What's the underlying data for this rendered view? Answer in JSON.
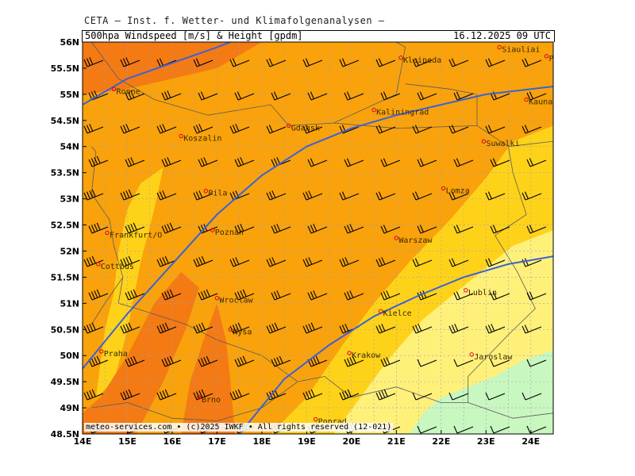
{
  "supertitle": "CETA — Inst. f. Wetter- und Klimafolgenanalysen —",
  "header": {
    "left": "500hpa Windspeed [m/s] & Height [gpdm]",
    "right": "16.12.2025 09 UTC"
  },
  "credit": "meteo-services.com • (c)2025 IWKF • All rights reserved (12-021)",
  "axes": {
    "lon_min": 14,
    "lon_max": 24.5,
    "lat_min": 48.5,
    "lat_max": 56,
    "lon_ticks": [
      "14E",
      "15E",
      "16E",
      "17E",
      "18E",
      "19E",
      "20E",
      "21E",
      "22E",
      "23E",
      "24E"
    ],
    "lat_ticks": [
      "48.5N",
      "49N",
      "49.5N",
      "50N",
      "50.5N",
      "51N",
      "51.5N",
      "52N",
      "52.5N",
      "53N",
      "53.5N",
      "54N",
      "54.5N",
      "55N",
      "55.5N",
      "56N"
    ]
  },
  "colors": {
    "dark_orange": "#f47a14",
    "orange": "#f9a20b",
    "yellow": "#ffd21a",
    "light_yellow": "#fff07a",
    "light_green": "#c8f7c0",
    "contour": "#3a62d6",
    "border": "#5a5a5a",
    "city": "#e0001a"
  },
  "cities": [
    {
      "name": "Ronne",
      "lon": 14.7,
      "lat": 55.1
    },
    {
      "name": "Koszalin",
      "lon": 16.2,
      "lat": 54.2
    },
    {
      "name": "Gdansk",
      "lon": 18.6,
      "lat": 54.4
    },
    {
      "name": "Kaliningrad",
      "lon": 20.5,
      "lat": 54.7
    },
    {
      "name": "Klaipeda",
      "lon": 21.1,
      "lat": 55.7
    },
    {
      "name": "Siauliai",
      "lon": 23.3,
      "lat": 55.9
    },
    {
      "name": "Panevezys",
      "lon": 24.35,
      "lat": 55.73
    },
    {
      "name": "Kaunas",
      "lon": 23.9,
      "lat": 54.9
    },
    {
      "name": "Suwalki",
      "lon": 22.95,
      "lat": 54.1
    },
    {
      "name": "Pila",
      "lon": 16.75,
      "lat": 53.15
    },
    {
      "name": "Lomza",
      "lon": 22.05,
      "lat": 53.2
    },
    {
      "name": "Poznan",
      "lon": 16.9,
      "lat": 52.4
    },
    {
      "name": "Warszaw",
      "lon": 21.0,
      "lat": 52.25
    },
    {
      "name": "Frankfurt/O",
      "lon": 14.55,
      "lat": 52.35
    },
    {
      "name": "Cottbus",
      "lon": 14.35,
      "lat": 51.75
    },
    {
      "name": "Lublin",
      "lon": 22.55,
      "lat": 51.25
    },
    {
      "name": "Wroclaw",
      "lon": 17.0,
      "lat": 51.1
    },
    {
      "name": "Kielce",
      "lon": 20.65,
      "lat": 50.85
    },
    {
      "name": "Nysa",
      "lon": 17.3,
      "lat": 50.5
    },
    {
      "name": "Praha",
      "lon": 14.42,
      "lat": 50.08
    },
    {
      "name": "Krakow",
      "lon": 19.95,
      "lat": 50.05
    },
    {
      "name": "Jaroslaw",
      "lon": 22.68,
      "lat": 50.02
    },
    {
      "name": "Brno",
      "lon": 16.6,
      "lat": 49.2
    },
    {
      "name": "Poprad",
      "lon": 19.2,
      "lat": 48.78
    }
  ],
  "contours": [
    [
      [
        14,
        54.8
      ],
      [
        15,
        55.3
      ],
      [
        16,
        55.6
      ],
      [
        17,
        55.9
      ],
      [
        17.3,
        56
      ]
    ],
    [
      [
        14,
        49.75
      ],
      [
        15,
        50.8
      ],
      [
        16,
        51.75
      ],
      [
        17,
        52.7
      ],
      [
        18,
        53.45
      ],
      [
        19,
        54.0
      ],
      [
        20,
        54.35
      ],
      [
        21,
        54.6
      ],
      [
        22,
        54.8
      ],
      [
        23,
        55.0
      ],
      [
        24.5,
        55.15
      ]
    ],
    [
      [
        17.5,
        48.5
      ],
      [
        18.5,
        49.55
      ],
      [
        19.5,
        50.2
      ],
      [
        20.5,
        50.75
      ],
      [
        21.5,
        51.15
      ],
      [
        22.5,
        51.5
      ],
      [
        23.5,
        51.75
      ],
      [
        24.5,
        51.9
      ]
    ]
  ],
  "regions": [
    {
      "color": "dark_orange",
      "points": [
        [
          14,
          56
        ],
        [
          18,
          56
        ],
        [
          17,
          55.5
        ],
        [
          15,
          55.1
        ],
        [
          14,
          55.0
        ]
      ]
    },
    {
      "color": "yellow",
      "points": [
        [
          18.2,
          48.5
        ],
        [
          19.0,
          49.2
        ],
        [
          19.8,
          50.2
        ],
        [
          20.5,
          51.0
        ],
        [
          21.3,
          51.8
        ],
        [
          22.2,
          52.6
        ],
        [
          23.0,
          53.4
        ],
        [
          23.6,
          54.1
        ],
        [
          24.5,
          54.4
        ],
        [
          24.5,
          48.5
        ]
      ]
    },
    {
      "color": "yellow",
      "points": [
        [
          14.3,
          49.2
        ],
        [
          14.5,
          50.5
        ],
        [
          14.7,
          51.2
        ],
        [
          14.8,
          52.0
        ],
        [
          15.0,
          52.8
        ],
        [
          15.3,
          53.3
        ],
        [
          15.8,
          53.6
        ],
        [
          15.6,
          52.8
        ],
        [
          15.3,
          51.8
        ],
        [
          15.0,
          50.5
        ],
        [
          14.7,
          49.5
        ]
      ]
    },
    {
      "color": "dark_orange",
      "points": [
        [
          14,
          48.5
        ],
        [
          15.2,
          48.5
        ],
        [
          15.8,
          49.5
        ],
        [
          16.3,
          50.5
        ],
        [
          16.6,
          51.3
        ],
        [
          16.2,
          51.6
        ],
        [
          15.6,
          51.0
        ],
        [
          15.0,
          50.0
        ],
        [
          14.4,
          49.2
        ],
        [
          14,
          48.9
        ]
      ]
    },
    {
      "color": "dark_orange",
      "points": [
        [
          16.2,
          48.5
        ],
        [
          17.4,
          48.5
        ],
        [
          17.3,
          49.5
        ],
        [
          17.2,
          50.3
        ],
        [
          17.0,
          51.0
        ],
        [
          16.7,
          50.3
        ],
        [
          16.4,
          49.5
        ]
      ]
    },
    {
      "color": "light_yellow",
      "points": [
        [
          19.6,
          48.5
        ],
        [
          20.2,
          49.2
        ],
        [
          20.8,
          49.9
        ],
        [
          21.6,
          50.7
        ],
        [
          22.6,
          51.4
        ],
        [
          23.6,
          52.1
        ],
        [
          24.5,
          52.4
        ],
        [
          24.5,
          48.5
        ]
      ]
    },
    {
      "color": "light_green",
      "points": [
        [
          21.3,
          48.5
        ],
        [
          21.6,
          48.9
        ],
        [
          22.0,
          49.2
        ],
        [
          22.6,
          49.4
        ],
        [
          23.2,
          49.6
        ],
        [
          23.8,
          49.9
        ],
        [
          24.5,
          50.1
        ],
        [
          24.5,
          48.5
        ]
      ]
    }
  ]
}
